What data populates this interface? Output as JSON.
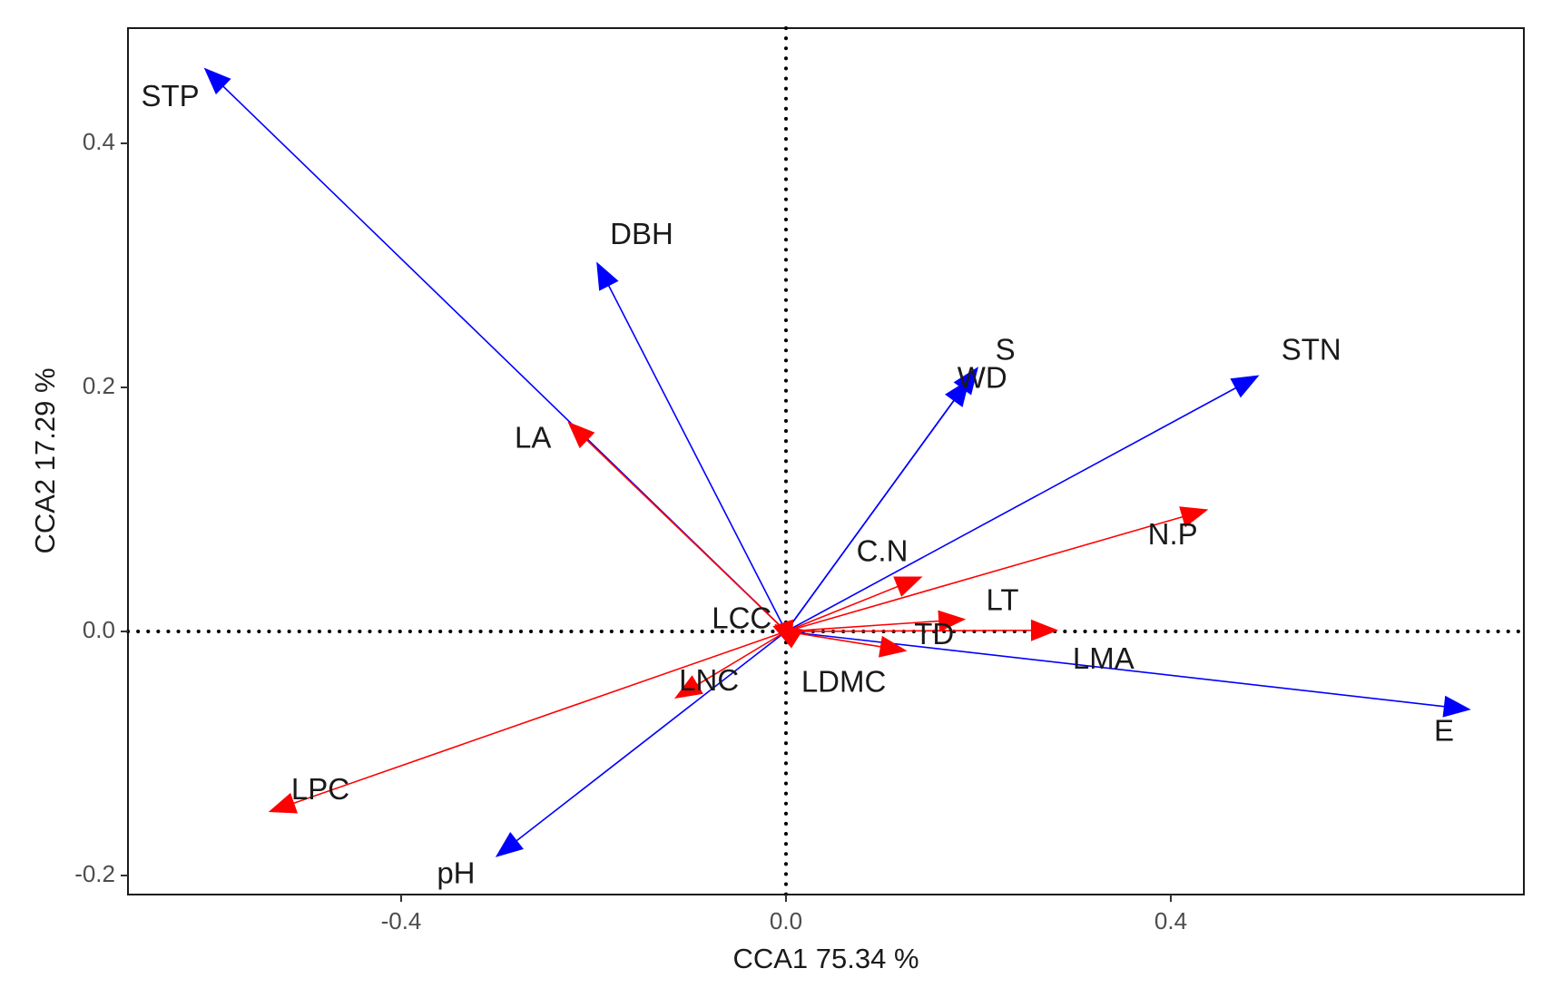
{
  "chart_data": {
    "type": "biplot",
    "title": "",
    "xlabel": "CCA1 75.34 %",
    "ylabel": "CCA2 17.29 %",
    "xlim": [
      -0.68,
      0.77
    ],
    "ylim": [
      -0.218,
      0.495
    ],
    "xticks": [
      {
        "value": -0.4,
        "label": "-0.4"
      },
      {
        "value": 0.0,
        "label": "0.0"
      },
      {
        "value": 0.4,
        "label": "0.4"
      }
    ],
    "yticks": [
      {
        "value": -0.2,
        "label": "-0.2"
      },
      {
        "value": 0.0,
        "label": "0.0"
      },
      {
        "value": 0.2,
        "label": "0.2"
      },
      {
        "value": 0.4,
        "label": "0.4"
      }
    ],
    "reference_lines": {
      "x": 0,
      "y": 0,
      "style": "dotted"
    },
    "colors": {
      "environment": "#0000ff",
      "traits": "#ff0000",
      "reference": "#000000"
    },
    "series": [
      {
        "name": "environment",
        "color": "#0000ff",
        "vectors": [
          {
            "label": "STP",
            "x": -0.605,
            "y": 0.462,
            "label_x": -0.64,
            "label_y": 0.437
          },
          {
            "label": "DBH",
            "x": -0.197,
            "y": 0.303,
            "label_x": -0.15,
            "label_y": 0.324
          },
          {
            "label": "S",
            "x": 0.2,
            "y": 0.217,
            "label_x": 0.228,
            "label_y": 0.229
          },
          {
            "label": "WD",
            "x": 0.191,
            "y": 0.207,
            "label_x": 0.204,
            "label_y": 0.206
          },
          {
            "label": "STN",
            "x": 0.492,
            "y": 0.21,
            "label_x": 0.546,
            "label_y": 0.229
          },
          {
            "label": "E",
            "x": 0.712,
            "y": -0.064,
            "label_x": 0.684,
            "label_y": -0.083
          },
          {
            "label": "pH",
            "x": -0.302,
            "y": -0.185,
            "label_x": -0.343,
            "label_y": -0.2
          }
        ]
      },
      {
        "name": "traits",
        "color": "#ff0000",
        "vectors": [
          {
            "label": "LA",
            "x": -0.227,
            "y": 0.172,
            "label_x": -0.263,
            "label_y": 0.157
          },
          {
            "label": "C.N",
            "x": 0.142,
            "y": 0.045,
            "label_x": 0.1,
            "label_y": 0.064
          },
          {
            "label": "N.P",
            "x": 0.439,
            "y": 0.1,
            "label_x": 0.402,
            "label_y": 0.078
          },
          {
            "label": "LT",
            "x": 0.187,
            "y": 0.01,
            "label_x": 0.225,
            "label_y": 0.024
          },
          {
            "label": "TD",
            "x": 0.283,
            "y": 0.001,
            "label_x": 0.154,
            "label_y": -0.004
          },
          {
            "label": "LMA",
            "x": 0.126,
            "y": -0.016,
            "label_x": 0.33,
            "label_y": -0.024
          },
          {
            "label": "LCC",
            "x": -0.012,
            "y": 0.006,
            "label_x": -0.046,
            "label_y": 0.009
          },
          {
            "label": "LDMC",
            "x": 0.006,
            "y": -0.014,
            "label_x": 0.06,
            "label_y": -0.043
          },
          {
            "label": "LNC",
            "x": -0.116,
            "y": -0.055,
            "label_x": -0.08,
            "label_y": -0.042
          },
          {
            "label": "LPC",
            "x": -0.538,
            "y": -0.148,
            "label_x": -0.484,
            "label_y": -0.131
          }
        ]
      }
    ]
  }
}
